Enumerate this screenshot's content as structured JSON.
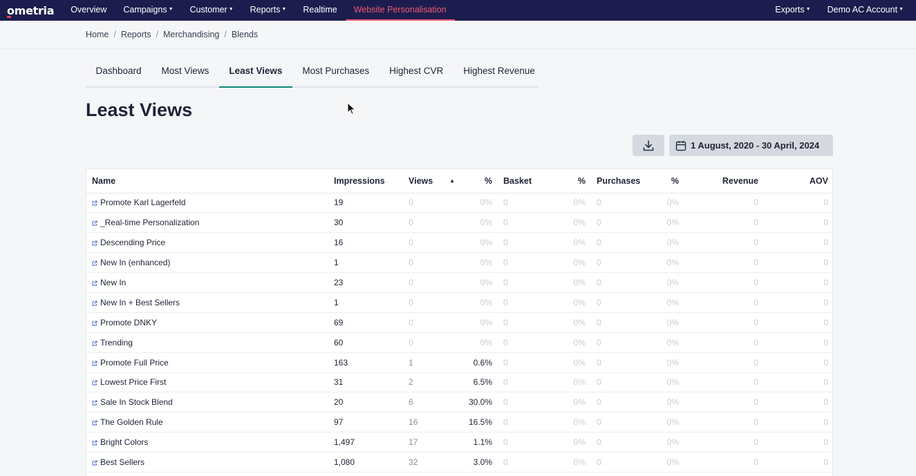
{
  "brand": {
    "logo": "ometria",
    "accent": "#f0596f",
    "nav_bg": "#1c1d4e",
    "tab_accent": "#0f8a7a"
  },
  "nav": {
    "items": [
      {
        "label": "Overview",
        "caret": false,
        "active": false
      },
      {
        "label": "Campaigns",
        "caret": true,
        "active": false
      },
      {
        "label": "Customer",
        "caret": true,
        "active": false
      },
      {
        "label": "Reports",
        "caret": true,
        "active": false
      },
      {
        "label": "Realtime",
        "caret": false,
        "active": false
      },
      {
        "label": "Website Personalisation",
        "caret": false,
        "active": true
      }
    ],
    "right": [
      {
        "label": "Exports",
        "caret": true
      },
      {
        "label": "Demo AC Account",
        "caret": true
      }
    ]
  },
  "breadcrumb": [
    "Home",
    "Reports",
    "Merchandising",
    "Blends"
  ],
  "tabs": [
    {
      "label": "Dashboard",
      "active": false
    },
    {
      "label": "Most Views",
      "active": false
    },
    {
      "label": "Least Views",
      "active": true
    },
    {
      "label": "Most Purchases",
      "active": false
    },
    {
      "label": "Highest CVR",
      "active": false
    },
    {
      "label": "Highest Revenue",
      "active": false
    }
  ],
  "page_title": "Least Views",
  "toolbar": {
    "download_icon": "download-icon",
    "date_icon": "calendar-icon",
    "date_range": "1 August, 2020 - 30 April, 2024"
  },
  "table": {
    "columns": [
      "Name",
      "Impressions",
      "Views",
      "%",
      "Basket",
      "%",
      "Purchases",
      "%",
      "Revenue",
      "AOV"
    ],
    "sorted_column": "Views",
    "rows": [
      [
        "Promote Karl Lagerfeld",
        "19",
        "0",
        "0%",
        "0",
        "0%",
        "0",
        "0%",
        "0",
        "0"
      ],
      [
        "_Real-time Personalization",
        "30",
        "0",
        "0%",
        "0",
        "0%",
        "0",
        "0%",
        "0",
        "0"
      ],
      [
        "Descending Price",
        "16",
        "0",
        "0%",
        "0",
        "0%",
        "0",
        "0%",
        "0",
        "0"
      ],
      [
        "New In (enhanced)",
        "1",
        "0",
        "0%",
        "0",
        "0%",
        "0",
        "0%",
        "0",
        "0"
      ],
      [
        "New In",
        "23",
        "0",
        "0%",
        "0",
        "0%",
        "0",
        "0%",
        "0",
        "0"
      ],
      [
        "New In + Best Sellers",
        "1",
        "0",
        "0%",
        "0",
        "0%",
        "0",
        "0%",
        "0",
        "0"
      ],
      [
        "Promote DNKY",
        "69",
        "0",
        "0%",
        "0",
        "0%",
        "0",
        "0%",
        "0",
        "0"
      ],
      [
        "Trending",
        "60",
        "0",
        "0%",
        "0",
        "0%",
        "0",
        "0%",
        "0",
        "0"
      ],
      [
        "Promote Full Price",
        "163",
        "1",
        "0.6%",
        "0",
        "0%",
        "0",
        "0%",
        "0",
        "0"
      ],
      [
        "Lowest Price First",
        "31",
        "2",
        "6.5%",
        "0",
        "0%",
        "0",
        "0%",
        "0",
        "0"
      ],
      [
        "Sale In Stock Blend",
        "20",
        "6",
        "30.0%",
        "0",
        "0%",
        "0",
        "0%",
        "0",
        "0"
      ],
      [
        "The Golden Rule",
        "97",
        "16",
        "16.5%",
        "0",
        "0%",
        "0",
        "0%",
        "0",
        "0"
      ],
      [
        "Bright Colors",
        "1,497",
        "17",
        "1.1%",
        "0",
        "0%",
        "0",
        "0%",
        "0",
        "0"
      ],
      [
        "Best Sellers",
        "1,080",
        "32",
        "3.0%",
        "0",
        "0%",
        "0",
        "0%",
        "0",
        "0"
      ]
    ]
  }
}
